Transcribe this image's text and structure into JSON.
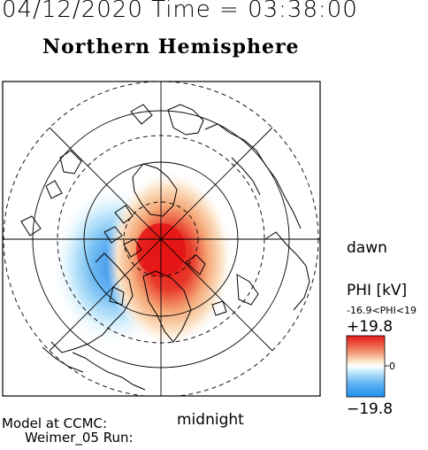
{
  "header": {
    "datetime": "04/12/2020 Time = 03:38:00",
    "hemisphere": "Northern Hemisphere"
  },
  "map": {
    "projection": "polar-stereographic",
    "pole": "north",
    "orientation": {
      "bottom": "midnight",
      "right": "dawn"
    },
    "grid": "dashed latitude circles, solid meridians every 45 degrees",
    "field": "electric potential PHI",
    "pattern": [
      {
        "name": "positive-cell",
        "sign": "positive",
        "side": "dusk-midnight",
        "color": "#e41e1e"
      },
      {
        "name": "negative-cell",
        "sign": "negative",
        "side": "dawn",
        "color": "#3a8fe8"
      }
    ]
  },
  "labels": {
    "dawn": "dawn",
    "midnight": "midnight"
  },
  "colorbar": {
    "title": "PHI [kV]",
    "range_text": "-16.9<PHI<19",
    "max_label": "+19.8",
    "zero_label": "0",
    "min_label": "−19.8",
    "max_value": 19.8,
    "min_value": -19.8,
    "colors": [
      "#e51a1a",
      "#fbe5c8",
      "#ffffff",
      "#c8ecfa",
      "#1e90f0"
    ]
  },
  "footer": {
    "model": "Model at CCMC:",
    "run": "Weimer_05 Run:"
  }
}
